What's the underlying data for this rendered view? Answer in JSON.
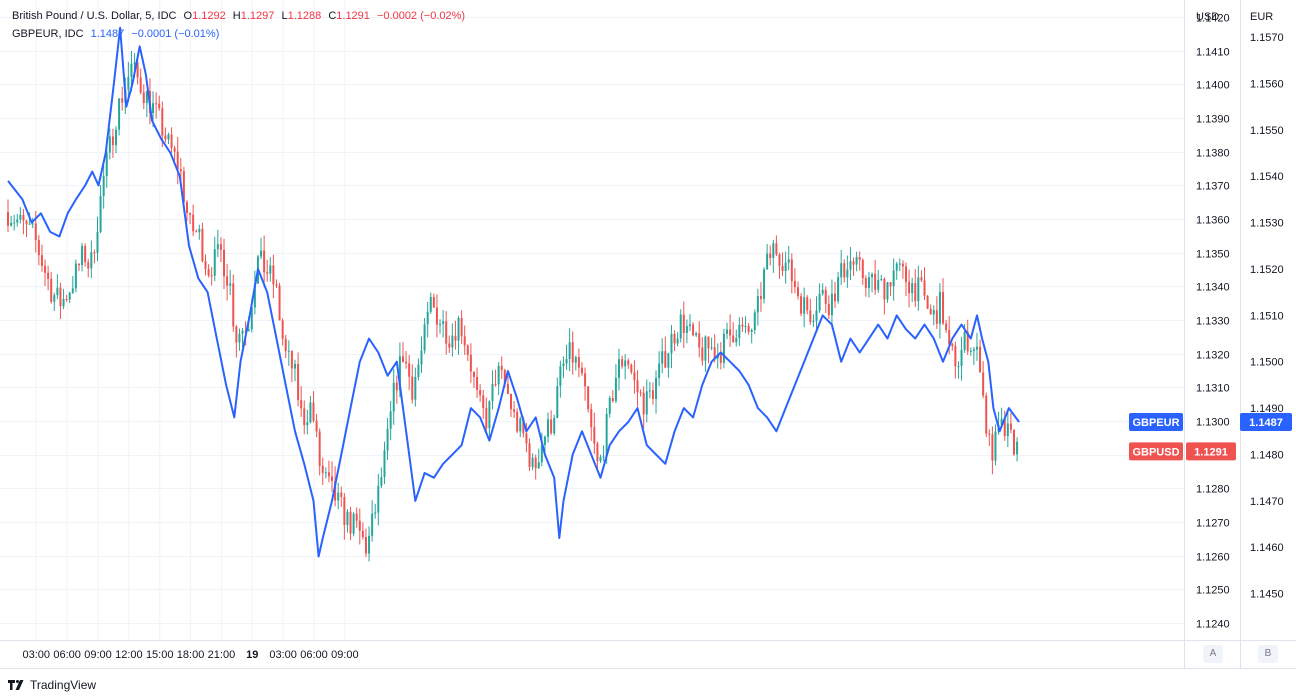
{
  "legend": {
    "main": {
      "title": "British Pound / U.S. Dollar, 5, IDC",
      "o_label": "O",
      "o_value": "1.1292",
      "h_label": "H",
      "h_value": "1.1297",
      "l_label": "L",
      "l_value": "1.1288",
      "c_label": "C",
      "c_value": "1.1291",
      "change": "−0.0002 (−0.02%)"
    },
    "compare": {
      "title": "GBPEUR, IDC",
      "value": "1.1487",
      "change": "−0.0001 (−0.01%)"
    }
  },
  "axis_buttons": {
    "a": "A",
    "b": "B"
  },
  "footer": {
    "brand": "TradingView"
  },
  "colors": {
    "up": "#26a69a",
    "down": "#ef5350",
    "line": "#2962ff",
    "grid": "#f0f3fa"
  },
  "chart_data": {
    "type": "candlestick+line",
    "x_ticks": [
      "03:00",
      "06:00",
      "09:00",
      "12:00",
      "15:00",
      "18:00",
      "21:00",
      "19",
      "03:00",
      "06:00",
      "09:00"
    ],
    "left_axis": {
      "unit": "USD",
      "range": [
        1.1235,
        1.1425
      ],
      "ticks": [
        "1.1420",
        "1.1410",
        "1.1400",
        "1.1390",
        "1.1380",
        "1.1370",
        "1.1360",
        "1.1350",
        "1.1340",
        "1.1330",
        "1.1320",
        "1.1310",
        "1.1300",
        "1.1290",
        "1.1280",
        "1.1270",
        "1.1260",
        "1.1250",
        "1.1240"
      ]
    },
    "right_axis": {
      "unit": "EUR",
      "range": [
        1.144,
        1.1578
      ],
      "ticks": [
        "1.1570",
        "1.1560",
        "1.1550",
        "1.1540",
        "1.1530",
        "1.1520",
        "1.1510",
        "1.1500",
        "1.1490",
        "1.1480",
        "1.1470",
        "1.1460",
        "1.1450"
      ]
    },
    "series": [
      {
        "name": "GBPUSD",
        "kind": "candles",
        "axis": "left",
        "last": "1.1291",
        "close_path": [
          [
            0.0,
            1.1362
          ],
          [
            2.5,
            1.1355
          ],
          [
            4.3,
            1.1338
          ],
          [
            5.2,
            1.1335
          ],
          [
            6.1,
            1.134
          ],
          [
            7.4,
            1.135
          ],
          [
            8.0,
            1.1345
          ],
          [
            9.3,
            1.1372
          ],
          [
            10.6,
            1.1392
          ],
          [
            12.0,
            1.1405
          ],
          [
            13.2,
            1.1398
          ],
          [
            14.6,
            1.139
          ],
          [
            15.6,
            1.1382
          ],
          [
            16.7,
            1.1375
          ],
          [
            17.6,
            1.1358
          ],
          [
            18.6,
            1.1355
          ],
          [
            19.4,
            1.1345
          ],
          [
            20.7,
            1.135
          ],
          [
            21.6,
            1.134
          ],
          [
            22.1,
            1.1325
          ],
          [
            23.4,
            1.133
          ],
          [
            24.2,
            1.1348
          ],
          [
            25.1,
            1.1345
          ],
          [
            26.0,
            1.134
          ],
          [
            26.9,
            1.132
          ],
          [
            27.8,
            1.1315
          ],
          [
            28.6,
            1.13
          ],
          [
            29.5,
            1.1305
          ],
          [
            30.4,
            1.1285
          ],
          [
            31.3,
            1.128
          ],
          [
            32.2,
            1.1275
          ],
          [
            33.1,
            1.127
          ],
          [
            34.0,
            1.1268
          ],
          [
            34.9,
            1.1262
          ],
          [
            35.8,
            1.1275
          ],
          [
            36.7,
            1.129
          ],
          [
            37.6,
            1.131
          ],
          [
            38.4,
            1.132
          ],
          [
            39.3,
            1.131
          ],
          [
            40.2,
            1.132
          ],
          [
            41.1,
            1.1335
          ],
          [
            42.0,
            1.133
          ],
          [
            43.0,
            1.1325
          ],
          [
            43.9,
            1.133
          ],
          [
            44.8,
            1.132
          ],
          [
            45.7,
            1.1305
          ],
          [
            46.6,
            1.13
          ],
          [
            47.5,
            1.1315
          ],
          [
            48.4,
            1.131
          ],
          [
            49.3,
            1.13
          ],
          [
            50.2,
            1.1295
          ],
          [
            51.1,
            1.1285
          ],
          [
            52.0,
            1.1295
          ],
          [
            52.9,
            1.13
          ],
          [
            53.8,
            1.1315
          ],
          [
            54.7,
            1.132
          ],
          [
            55.6,
            1.1315
          ],
          [
            56.5,
            1.13
          ],
          [
            57.4,
            1.1285
          ],
          [
            58.3,
            1.13
          ],
          [
            59.2,
            1.1315
          ],
          [
            60.1,
            1.132
          ],
          [
            61.0,
            1.131
          ],
          [
            61.9,
            1.1305
          ],
          [
            62.8,
            1.131
          ],
          [
            63.7,
            1.1318
          ],
          [
            64.6,
            1.1325
          ],
          [
            65.5,
            1.133
          ],
          [
            66.4,
            1.1325
          ],
          [
            67.3,
            1.132
          ],
          [
            68.2,
            1.1322
          ],
          [
            69.1,
            1.132
          ],
          [
            70.0,
            1.1325
          ],
          [
            70.9,
            1.1328
          ],
          [
            71.8,
            1.1325
          ],
          [
            72.7,
            1.133
          ],
          [
            73.6,
            1.1345
          ],
          [
            74.5,
            1.1352
          ],
          [
            75.4,
            1.1348
          ],
          [
            76.3,
            1.1342
          ],
          [
            77.2,
            1.1335
          ],
          [
            78.1,
            1.1332
          ],
          [
            79.0,
            1.1338
          ],
          [
            79.9,
            1.1335
          ],
          [
            80.8,
            1.1342
          ],
          [
            81.7,
            1.1348
          ],
          [
            82.6,
            1.1345
          ],
          [
            83.5,
            1.1342
          ],
          [
            84.4,
            1.134
          ],
          [
            85.3,
            1.134
          ],
          [
            86.2,
            1.1345
          ],
          [
            87.1,
            1.1343
          ],
          [
            88.0,
            1.134
          ],
          [
            88.9,
            1.1338
          ],
          [
            89.8,
            1.133
          ],
          [
            90.7,
            1.1335
          ],
          [
            91.5,
            1.132
          ],
          [
            92.4,
            1.1318
          ],
          [
            93.2,
            1.1325
          ],
          [
            94.1,
            1.132
          ],
          [
            94.5,
            1.1318
          ],
          [
            95.0,
            1.13
          ],
          [
            95.6,
            1.129
          ],
          [
            96.5,
            1.1298
          ],
          [
            97.4,
            1.1295
          ],
          [
            98.3,
            1.1291
          ]
        ]
      },
      {
        "name": "GBPEUR",
        "kind": "line",
        "axis": "right",
        "last": "1.1487",
        "points": [
          [
            0.0,
            1.1539
          ],
          [
            0.7,
            1.1537
          ],
          [
            1.4,
            1.1535
          ],
          [
            2.3,
            1.153
          ],
          [
            3.2,
            1.1532
          ],
          [
            4.1,
            1.1528
          ],
          [
            5.0,
            1.1527
          ],
          [
            5.8,
            1.1532
          ],
          [
            6.6,
            1.1535
          ],
          [
            7.5,
            1.1538
          ],
          [
            8.2,
            1.1541
          ],
          [
            8.8,
            1.1538
          ],
          [
            9.5,
            1.1545
          ],
          [
            10.3,
            1.156
          ],
          [
            10.9,
            1.1572
          ],
          [
            11.5,
            1.1555
          ],
          [
            12.1,
            1.156
          ],
          [
            12.8,
            1.1568
          ],
          [
            13.4,
            1.1562
          ],
          [
            14.0,
            1.1552
          ],
          [
            14.9,
            1.1548
          ],
          [
            15.8,
            1.1545
          ],
          [
            16.7,
            1.154
          ],
          [
            17.6,
            1.1525
          ],
          [
            18.5,
            1.1518
          ],
          [
            19.4,
            1.1515
          ],
          [
            20.3,
            1.1505
          ],
          [
            21.2,
            1.1495
          ],
          [
            22.0,
            1.1488
          ],
          [
            22.6,
            1.15
          ],
          [
            23.5,
            1.151
          ],
          [
            24.3,
            1.152
          ],
          [
            25.2,
            1.1515
          ],
          [
            26.1,
            1.1505
          ],
          [
            27.0,
            1.1495
          ],
          [
            27.9,
            1.1485
          ],
          [
            28.8,
            1.1478
          ],
          [
            29.7,
            1.147
          ],
          [
            30.2,
            1.1458
          ],
          [
            30.6,
            1.1462
          ],
          [
            31.5,
            1.147
          ],
          [
            32.4,
            1.148
          ],
          [
            33.3,
            1.149
          ],
          [
            34.2,
            1.15
          ],
          [
            35.1,
            1.1505
          ],
          [
            36.0,
            1.1502
          ],
          [
            36.9,
            1.1497
          ],
          [
            37.8,
            1.15
          ],
          [
            38.7,
            1.1485
          ],
          [
            39.6,
            1.147
          ],
          [
            40.5,
            1.1476
          ],
          [
            41.4,
            1.1475
          ],
          [
            42.3,
            1.1478
          ],
          [
            43.2,
            1.148
          ],
          [
            44.1,
            1.1482
          ],
          [
            45.0,
            1.149
          ],
          [
            45.9,
            1.1488
          ],
          [
            46.8,
            1.1483
          ],
          [
            47.7,
            1.149
          ],
          [
            48.6,
            1.1498
          ],
          [
            49.5,
            1.1492
          ],
          [
            50.4,
            1.1485
          ],
          [
            51.3,
            1.1488
          ],
          [
            52.2,
            1.148
          ],
          [
            53.1,
            1.1475
          ],
          [
            53.6,
            1.1462
          ],
          [
            54.0,
            1.147
          ],
          [
            54.9,
            1.148
          ],
          [
            55.8,
            1.1485
          ],
          [
            56.7,
            1.148
          ],
          [
            57.6,
            1.1475
          ],
          [
            58.5,
            1.1482
          ],
          [
            59.4,
            1.1485
          ],
          [
            60.3,
            1.1487
          ],
          [
            61.2,
            1.149
          ],
          [
            62.1,
            1.1482
          ],
          [
            63.0,
            1.148
          ],
          [
            63.9,
            1.1478
          ],
          [
            64.8,
            1.1485
          ],
          [
            65.7,
            1.149
          ],
          [
            66.6,
            1.1488
          ],
          [
            67.5,
            1.1495
          ],
          [
            68.4,
            1.15
          ],
          [
            69.3,
            1.1502
          ],
          [
            70.2,
            1.15
          ],
          [
            71.1,
            1.1498
          ],
          [
            72.0,
            1.1495
          ],
          [
            72.9,
            1.149
          ],
          [
            73.8,
            1.1488
          ],
          [
            74.7,
            1.1485
          ],
          [
            75.6,
            1.149
          ],
          [
            76.5,
            1.1495
          ],
          [
            77.4,
            1.15
          ],
          [
            78.3,
            1.1505
          ],
          [
            79.2,
            1.151
          ],
          [
            80.1,
            1.1508
          ],
          [
            81.0,
            1.15
          ],
          [
            81.9,
            1.1505
          ],
          [
            82.8,
            1.1502
          ],
          [
            83.7,
            1.1505
          ],
          [
            84.6,
            1.1508
          ],
          [
            85.5,
            1.1505
          ],
          [
            86.4,
            1.151
          ],
          [
            87.3,
            1.1507
          ],
          [
            88.2,
            1.1505
          ],
          [
            89.1,
            1.1508
          ],
          [
            90.0,
            1.1505
          ],
          [
            90.9,
            1.15
          ],
          [
            91.8,
            1.1505
          ],
          [
            92.7,
            1.1508
          ],
          [
            93.6,
            1.1505
          ],
          [
            94.2,
            1.151
          ],
          [
            94.7,
            1.1505
          ],
          [
            95.3,
            1.15
          ],
          [
            95.8,
            1.149
          ],
          [
            96.4,
            1.1485
          ],
          [
            97.3,
            1.149
          ],
          [
            98.3,
            1.1487
          ]
        ]
      }
    ]
  }
}
